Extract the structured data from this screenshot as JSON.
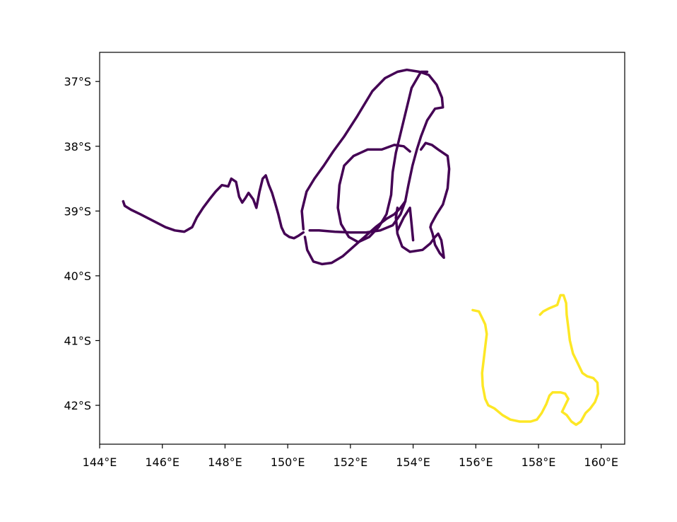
{
  "chart_data": {
    "type": "line",
    "title": "",
    "xlabel": "",
    "ylabel": "",
    "xlim": [
      144.0,
      160.75
    ],
    "ylim": [
      -42.6,
      -36.55
    ],
    "grid": false,
    "x_ticks": [
      {
        "value": 144,
        "label": "144°E"
      },
      {
        "value": 146,
        "label": "146°E"
      },
      {
        "value": 148,
        "label": "148°E"
      },
      {
        "value": 150,
        "label": "150°E"
      },
      {
        "value": 152,
        "label": "152°E"
      },
      {
        "value": 154,
        "label": "154°E"
      },
      {
        "value": 156,
        "label": "156°E"
      },
      {
        "value": 158,
        "label": "158°E"
      },
      {
        "value": 160,
        "label": "160°E"
      }
    ],
    "y_ticks": [
      {
        "value": -37,
        "label": "37°S"
      },
      {
        "value": -38,
        "label": "38°S"
      },
      {
        "value": -39,
        "label": "39°S"
      },
      {
        "value": -40,
        "label": "40°S"
      },
      {
        "value": -41,
        "label": "41°S"
      },
      {
        "value": -42,
        "label": "42°S"
      }
    ],
    "series": [
      {
        "color": "#440154",
        "segments": [
          [
            [
              144.75,
              -38.85
            ],
            [
              144.8,
              -38.92
            ],
            [
              145.0,
              -38.98
            ],
            [
              145.3,
              -39.05
            ],
            [
              145.7,
              -39.15
            ],
            [
              146.1,
              -39.25
            ],
            [
              146.4,
              -39.3
            ],
            [
              146.7,
              -39.32
            ],
            [
              146.95,
              -39.25
            ],
            [
              147.1,
              -39.1
            ],
            [
              147.3,
              -38.95
            ],
            [
              147.5,
              -38.82
            ],
            [
              147.7,
              -38.7
            ],
            [
              147.9,
              -38.6
            ],
            [
              148.1,
              -38.62
            ],
            [
              148.2,
              -38.5
            ],
            [
              148.35,
              -38.55
            ],
            [
              148.45,
              -38.78
            ],
            [
              148.55,
              -38.87
            ],
            [
              148.65,
              -38.8
            ],
            [
              148.75,
              -38.72
            ],
            [
              148.9,
              -38.82
            ],
            [
              149.0,
              -38.95
            ],
            [
              149.1,
              -38.7
            ],
            [
              149.2,
              -38.5
            ],
            [
              149.3,
              -38.45
            ],
            [
              149.4,
              -38.6
            ],
            [
              149.5,
              -38.72
            ],
            [
              149.6,
              -38.88
            ],
            [
              149.7,
              -39.05
            ],
            [
              149.8,
              -39.25
            ],
            [
              149.9,
              -39.35
            ],
            [
              150.05,
              -39.4
            ],
            [
              150.2,
              -39.42
            ],
            [
              150.35,
              -39.38
            ],
            [
              150.5,
              -39.33
            ]
          ],
          [
            [
              150.5,
              -39.28
            ],
            [
              150.45,
              -39.0
            ],
            [
              150.6,
              -38.7
            ],
            [
              150.85,
              -38.5
            ],
            [
              151.15,
              -38.3
            ],
            [
              151.45,
              -38.08
            ],
            [
              151.8,
              -37.85
            ],
            [
              152.2,
              -37.55
            ],
            [
              152.7,
              -37.15
            ],
            [
              153.1,
              -36.95
            ],
            [
              153.5,
              -36.85
            ],
            [
              153.8,
              -36.82
            ],
            [
              154.2,
              -36.85
            ],
            [
              154.5,
              -36.9
            ],
            [
              154.75,
              -37.05
            ],
            [
              154.92,
              -37.25
            ],
            [
              154.95,
              -37.4
            ],
            [
              154.7,
              -37.42
            ],
            [
              154.45,
              -37.6
            ],
            [
              154.25,
              -37.85
            ],
            [
              154.12,
              -38.05
            ],
            [
              153.98,
              -38.3
            ],
            [
              153.85,
              -38.6
            ],
            [
              153.75,
              -38.85
            ],
            [
              153.6,
              -39.05
            ],
            [
              153.35,
              -39.22
            ],
            [
              152.95,
              -39.3
            ],
            [
              152.5,
              -39.33
            ],
            [
              152.0,
              -39.33
            ],
            [
              151.5,
              -39.32
            ],
            [
              151.0,
              -39.3
            ],
            [
              150.7,
              -39.3
            ]
          ],
          [
            [
              150.55,
              -39.4
            ],
            [
              150.62,
              -39.6
            ],
            [
              150.82,
              -39.78
            ],
            [
              151.1,
              -39.82
            ],
            [
              151.4,
              -39.8
            ],
            [
              151.75,
              -39.7
            ],
            [
              152.1,
              -39.55
            ],
            [
              152.45,
              -39.4
            ],
            [
              152.8,
              -39.25
            ],
            [
              153.15,
              -39.12
            ],
            [
              153.4,
              -39.05
            ],
            [
              153.6,
              -38.95
            ],
            [
              153.75,
              -38.85
            ]
          ],
          [
            [
              153.5,
              -38.95
            ],
            [
              153.45,
              -39.1
            ],
            [
              153.5,
              -39.35
            ],
            [
              153.65,
              -39.55
            ],
            [
              153.9,
              -39.63
            ],
            [
              154.3,
              -39.6
            ],
            [
              154.55,
              -39.5
            ],
            [
              154.7,
              -39.4
            ],
            [
              154.8,
              -39.35
            ],
            [
              154.9,
              -39.45
            ],
            [
              154.95,
              -39.6
            ],
            [
              154.98,
              -39.72
            ],
            [
              154.85,
              -39.65
            ],
            [
              154.7,
              -39.52
            ],
            [
              154.62,
              -39.35
            ],
            [
              154.55,
              -39.25
            ],
            [
              154.58,
              -39.2
            ]
          ],
          [
            [
              154.58,
              -39.2
            ],
            [
              154.75,
              -39.05
            ],
            [
              154.95,
              -38.9
            ],
            [
              155.1,
              -38.65
            ],
            [
              155.15,
              -38.35
            ],
            [
              155.1,
              -38.15
            ],
            [
              154.95,
              -38.1
            ],
            [
              154.8,
              -38.05
            ],
            [
              154.6,
              -37.98
            ],
            [
              154.4,
              -37.95
            ],
            [
              154.25,
              -38.05
            ]
          ],
          [
            [
              153.9,
              -38.08
            ],
            [
              153.7,
              -38.0
            ],
            [
              153.4,
              -37.98
            ],
            [
              153.0,
              -38.05
            ],
            [
              152.55,
              -38.05
            ],
            [
              152.1,
              -38.15
            ],
            [
              151.8,
              -38.3
            ],
            [
              151.65,
              -38.6
            ],
            [
              151.6,
              -38.95
            ],
            [
              151.7,
              -39.2
            ],
            [
              151.95,
              -39.4
            ],
            [
              152.25,
              -39.48
            ],
            [
              152.6,
              -39.4
            ],
            [
              152.9,
              -39.25
            ],
            [
              153.15,
              -39.05
            ],
            [
              153.3,
              -38.75
            ],
            [
              153.35,
              -38.4
            ],
            [
              153.45,
              -38.1
            ],
            [
              153.7,
              -37.6
            ],
            [
              153.95,
              -37.1
            ],
            [
              154.25,
              -36.85
            ],
            [
              154.45,
              -36.85
            ]
          ],
          [
            [
              153.5,
              -39.3
            ],
            [
              153.7,
              -39.1
            ],
            [
              153.9,
              -38.95
            ],
            [
              153.95,
              -39.2
            ],
            [
              154.0,
              -39.45
            ]
          ]
        ]
      },
      {
        "color": "#fde725",
        "segments": [
          [
            [
              155.9,
              -40.53
            ],
            [
              156.1,
              -40.55
            ],
            [
              156.2,
              -40.65
            ],
            [
              156.3,
              -40.75
            ],
            [
              156.35,
              -40.9
            ],
            [
              156.3,
              -41.1
            ],
            [
              156.25,
              -41.3
            ],
            [
              156.2,
              -41.5
            ],
            [
              156.22,
              -41.7
            ],
            [
              156.3,
              -41.9
            ],
            [
              156.4,
              -42.0
            ],
            [
              156.6,
              -42.05
            ],
            [
              156.85,
              -42.15
            ],
            [
              157.1,
              -42.22
            ],
            [
              157.4,
              -42.25
            ],
            [
              157.75,
              -42.25
            ],
            [
              157.95,
              -42.22
            ],
            [
              158.1,
              -42.12
            ],
            [
              158.25,
              -41.98
            ],
            [
              158.35,
              -41.85
            ],
            [
              158.45,
              -41.8
            ],
            [
              158.7,
              -41.8
            ],
            [
              158.85,
              -41.82
            ],
            [
              158.95,
              -41.9
            ],
            [
              158.85,
              -42.0
            ],
            [
              158.75,
              -42.1
            ],
            [
              158.9,
              -42.15
            ],
            [
              159.05,
              -42.25
            ],
            [
              159.2,
              -42.3
            ],
            [
              159.35,
              -42.25
            ],
            [
              159.5,
              -42.12
            ],
            [
              159.65,
              -42.05
            ],
            [
              159.8,
              -41.95
            ],
            [
              159.9,
              -41.82
            ],
            [
              159.88,
              -41.65
            ],
            [
              159.75,
              -41.58
            ],
            [
              159.55,
              -41.55
            ],
            [
              159.4,
              -41.5
            ],
            [
              159.25,
              -41.35
            ],
            [
              159.1,
              -41.2
            ],
            [
              159.0,
              -41.0
            ],
            [
              158.95,
              -40.8
            ],
            [
              158.9,
              -40.6
            ],
            [
              158.88,
              -40.42
            ],
            [
              158.8,
              -40.3
            ],
            [
              158.7,
              -40.3
            ],
            [
              158.6,
              -40.45
            ],
            [
              158.35,
              -40.5
            ],
            [
              158.15,
              -40.55
            ],
            [
              158.05,
              -40.6
            ]
          ]
        ]
      }
    ]
  }
}
